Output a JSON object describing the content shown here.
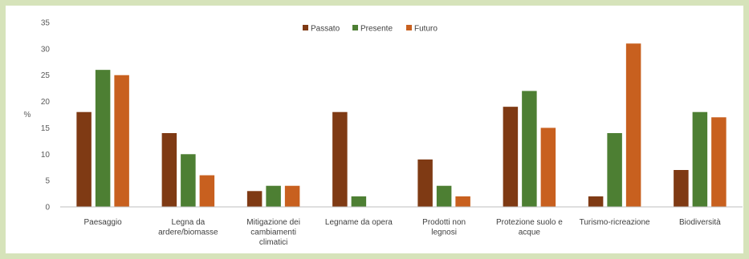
{
  "chart_data": {
    "type": "bar",
    "title": "",
    "xlabel": "",
    "ylabel": "%",
    "ylim": [
      0,
      35
    ],
    "yticks": [
      0,
      5,
      10,
      15,
      20,
      25,
      30,
      35
    ],
    "grid": false,
    "legend_position": "top-center",
    "categories": [
      [
        "Paesaggio"
      ],
      [
        "Legna da",
        "ardere/biomasse"
      ],
      [
        "Mitigazione dei",
        "cambiamenti",
        "climatici"
      ],
      [
        "Legname da opera"
      ],
      [
        "Prodotti non",
        "legnosi"
      ],
      [
        "Protezione suolo e",
        "acque"
      ],
      [
        "Turismo-ricreazione"
      ],
      [
        "Biodiversità"
      ]
    ],
    "series": [
      {
        "name": "Passato",
        "color": "#7f3a14",
        "values": [
          18,
          14,
          3,
          18,
          9,
          19,
          2,
          7
        ]
      },
      {
        "name": "Presente",
        "color": "#4d7f33",
        "values": [
          26,
          10,
          4,
          2,
          4,
          22,
          14,
          18
        ]
      },
      {
        "name": "Futuro",
        "color": "#c8601f",
        "values": [
          25,
          6,
          4,
          0,
          2,
          15,
          31,
          17
        ]
      }
    ]
  }
}
